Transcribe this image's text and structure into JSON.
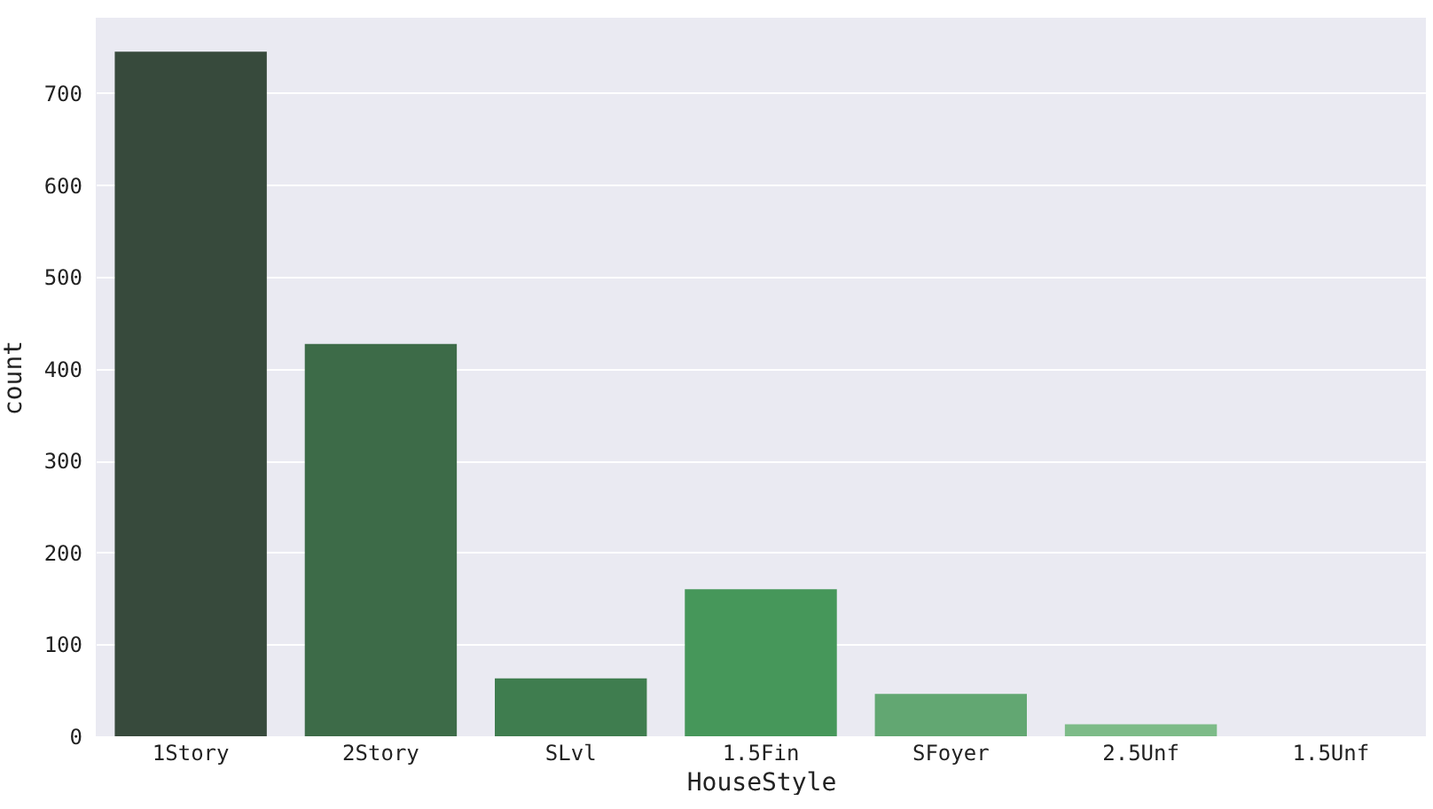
{
  "chart_data": {
    "type": "bar",
    "xlabel": "HouseStyle",
    "ylabel": "count",
    "categories": [
      "1Story",
      "2Story",
      "SLvl",
      "1.5Fin",
      "SFoyer",
      "2.5Unf",
      "1.5Unf"
    ],
    "values": [
      745,
      427,
      63,
      160,
      46,
      13,
      null
    ],
    "colors": [
      "#374a3c",
      "#3d6b48",
      "#3f7d4f",
      "#46975a",
      "#62a772",
      "#7dbb88",
      "#9fd0a6"
    ],
    "ylim": [
      0,
      782
    ],
    "yticks": [
      0,
      100,
      200,
      300,
      400,
      500,
      600,
      700
    ],
    "grid": "y"
  }
}
